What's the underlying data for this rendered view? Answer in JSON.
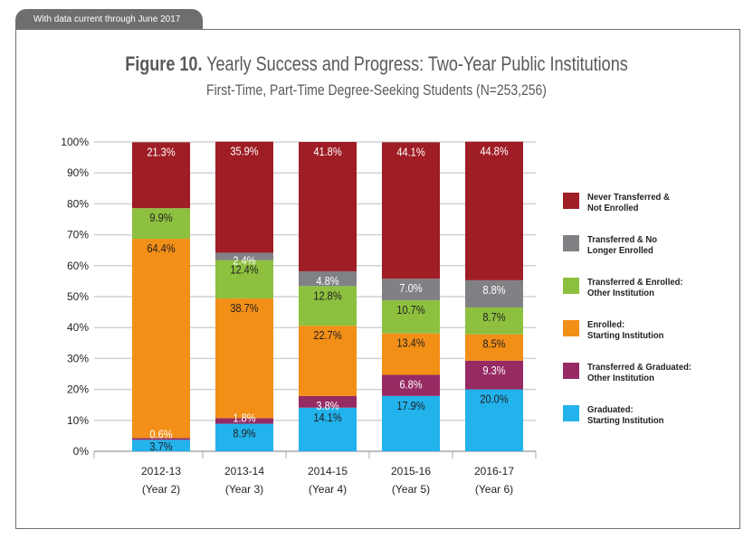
{
  "banner": "With data current through June 2017",
  "title_bold": "Figure 10.",
  "title_rest": " Yearly Success and Progress: Two-Year Public Institutions",
  "subtitle": "First-Time, Part-Time Degree-Seeking Students (N=253,256)",
  "chart_data": {
    "type": "bar",
    "stacked": true,
    "categories": [
      "2012-13",
      "2013-14",
      "2014-15",
      "2015-16",
      "2016-17"
    ],
    "category_sublabels": [
      "(Year 2)",
      "(Year 3)",
      "(Year 4)",
      "(Year 5)",
      "(Year 6)"
    ],
    "ylim": [
      0,
      100
    ],
    "yticks": [
      "0%",
      "10%",
      "20%",
      "30%",
      "40%",
      "50%",
      "60%",
      "70%",
      "80%",
      "90%",
      "100%"
    ],
    "grid": true,
    "legend_placement": "right",
    "series": [
      {
        "name": "Graduated:\nStarting Institution",
        "color": "#22b2ec",
        "label_color": "#231f20",
        "values": [
          3.7,
          8.9,
          14.1,
          17.9,
          20.0
        ]
      },
      {
        "name": "Transferred & Graduated:\nOther Institution",
        "color": "#962a63",
        "label_color": "#ffffff",
        "values": [
          0.6,
          1.8,
          3.8,
          6.8,
          9.3
        ]
      },
      {
        "name": "Enrolled:\nStarting Institution",
        "color": "#f28f17",
        "label_color": "#231f20",
        "values": [
          64.4,
          38.7,
          22.7,
          13.4,
          8.5
        ]
      },
      {
        "name": "Transferred & Enrolled:\nOther Institution",
        "color": "#8dc03f",
        "label_color": "#231f20",
        "values": [
          9.9,
          12.4,
          12.8,
          10.7,
          8.7
        ]
      },
      {
        "name": "Transferred & No\nLonger Enrolled",
        "color": "#808184",
        "label_color": "#ffffff",
        "values": [
          null,
          2.4,
          4.8,
          7.0,
          8.8
        ]
      },
      {
        "name": "Never Transferred &\nNot Enrolled",
        "color": "#9f1d25",
        "label_color": "#ffffff",
        "values": [
          21.3,
          35.9,
          41.8,
          44.1,
          44.8
        ]
      }
    ]
  }
}
